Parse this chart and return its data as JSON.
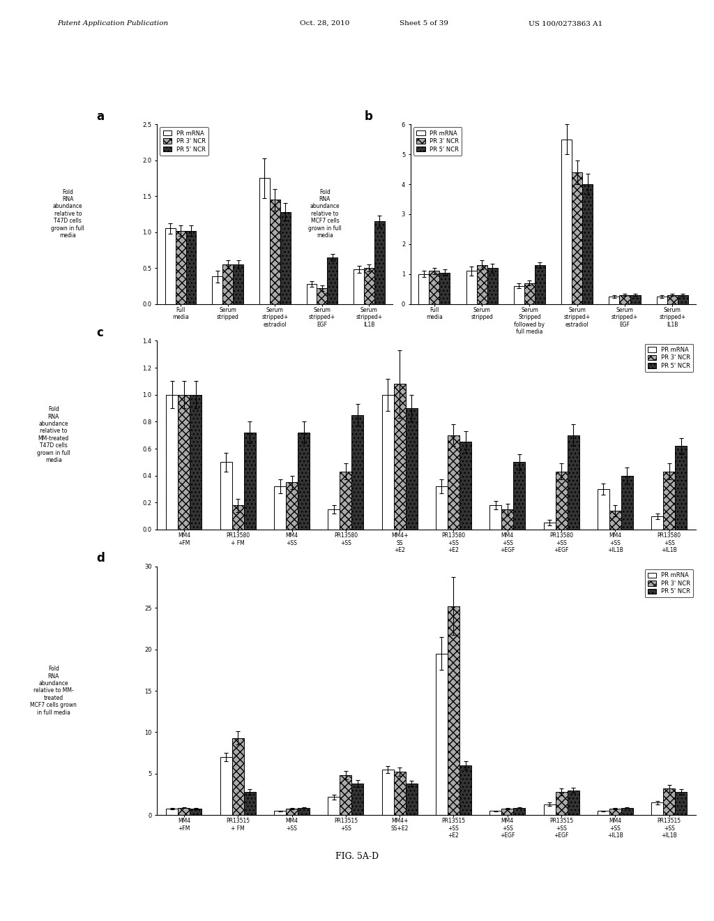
{
  "panel_a": {
    "label": "a",
    "ylabel": "Fold\nRNA\nabundance\nrelative to\nT47D cells\ngrown in full\nmedia",
    "ylim": [
      0,
      2.5
    ],
    "yticks": [
      0,
      0.5,
      1,
      1.5,
      2,
      2.5
    ],
    "groups": [
      "Full\nmedia",
      "Serum\nstripped",
      "Serum\nstripped+\nestradiol",
      "Serum\nstripped+\nEGF",
      "Serum\nstripped+\nIL1B"
    ],
    "PR_mRNA": [
      1.05,
      0.38,
      1.75,
      0.28,
      0.48
    ],
    "PR_3NCR": [
      1.02,
      0.55,
      1.45,
      0.22,
      0.5
    ],
    "PR_5NCR": [
      1.02,
      0.55,
      1.28,
      0.65,
      1.15
    ],
    "PR_mRNA_err": [
      0.07,
      0.08,
      0.28,
      0.04,
      0.05
    ],
    "PR_3NCR_err": [
      0.07,
      0.06,
      0.15,
      0.04,
      0.05
    ],
    "PR_5NCR_err": [
      0.07,
      0.06,
      0.12,
      0.05,
      0.08
    ]
  },
  "panel_b": {
    "label": "b",
    "ylabel": "Fold\nRNA\nabundance\nrelative to\nMCF7 cells\ngrown in full\nmedia",
    "ylim": [
      0,
      6
    ],
    "yticks": [
      0,
      1,
      2,
      3,
      4,
      5,
      6
    ],
    "groups": [
      "Full\nmedia",
      "Serum\nstripped",
      "Serum\nStripped\nfollowed by\nfull media",
      "Serum\nstripped+\nestradiol",
      "Serum\nstripped+\nEGF",
      "Serum\nstripped+\nIL1B"
    ],
    "PR_mRNA": [
      1.0,
      1.1,
      0.6,
      5.5,
      0.25,
      0.25
    ],
    "PR_3NCR": [
      1.1,
      1.3,
      0.7,
      4.4,
      0.3,
      0.3
    ],
    "PR_5NCR": [
      1.05,
      1.2,
      1.3,
      4.0,
      0.3,
      0.3
    ],
    "PR_mRNA_err": [
      0.1,
      0.15,
      0.08,
      0.5,
      0.04,
      0.04
    ],
    "PR_3NCR_err": [
      0.1,
      0.15,
      0.08,
      0.4,
      0.04,
      0.04
    ],
    "PR_5NCR_err": [
      0.1,
      0.15,
      0.1,
      0.35,
      0.04,
      0.04
    ]
  },
  "panel_c": {
    "label": "c",
    "ylabel": "Fold\nRNA\nabundance\nrelative to\nMM-treated\nT47D cells\ngrown in full\nmedia",
    "ylim": [
      0,
      1.4
    ],
    "yticks": [
      0,
      0.2,
      0.4,
      0.6,
      0.8,
      1.0,
      1.2,
      1.4
    ],
    "groups": [
      "MM4\n+FM",
      "PR13580\n+ FM",
      "MM4\n+SS",
      "PR13580\n+SS",
      "MM4+\nSS\n+E2",
      "PR13580\n+SS\n+E2",
      "MM4\n+SS\n+EGF",
      "PR13580\n+SS\n+EGF",
      "MM4\n+SS\n+IL1B",
      "PR13580\n+SS\n+IL1B"
    ],
    "PR_mRNA": [
      1.0,
      0.5,
      0.32,
      0.15,
      1.0,
      0.32,
      0.18,
      0.05,
      0.3,
      0.1
    ],
    "PR_3NCR": [
      1.0,
      0.18,
      0.35,
      0.43,
      1.08,
      0.7,
      0.15,
      0.43,
      0.14,
      0.43
    ],
    "PR_5NCR": [
      1.0,
      0.72,
      0.72,
      0.85,
      0.9,
      0.65,
      0.5,
      0.7,
      0.4,
      0.62
    ],
    "PR_mRNA_err": [
      0.1,
      0.07,
      0.05,
      0.03,
      0.12,
      0.05,
      0.03,
      0.02,
      0.04,
      0.02
    ],
    "PR_3NCR_err": [
      0.1,
      0.05,
      0.05,
      0.06,
      0.25,
      0.08,
      0.04,
      0.06,
      0.04,
      0.06
    ],
    "PR_5NCR_err": [
      0.1,
      0.08,
      0.08,
      0.08,
      0.1,
      0.08,
      0.06,
      0.08,
      0.06,
      0.06
    ]
  },
  "panel_d": {
    "label": "d",
    "ylabel": "Fold\nRNA\nabundance\nrelative to MM-\ntreated\nMCF7 cells grown\nin full media",
    "ylim": [
      0,
      30
    ],
    "yticks": [
      0,
      5,
      10,
      15,
      20,
      25,
      30
    ],
    "groups": [
      "MM4\n+FM",
      "PR13515\n+ FM",
      "MM4\n+SS",
      "PR13515\n+SS",
      "MM4+\nSS+E2",
      "PR13515\n+SS\n+E2",
      "MM4\n+SS\n+EGF",
      "PR13515\n+SS\n+EGF",
      "MM4\n+SS\n+IL1B",
      "PR13515\n+SS\n+IL1B"
    ],
    "PR_mRNA": [
      0.8,
      7.0,
      0.5,
      2.2,
      5.5,
      19.5,
      0.5,
      1.3,
      0.5,
      1.5
    ],
    "PR_3NCR": [
      0.9,
      9.3,
      0.8,
      4.8,
      5.2,
      25.2,
      0.8,
      2.8,
      0.8,
      3.2
    ],
    "PR_5NCR": [
      0.8,
      2.8,
      0.9,
      3.8,
      3.8,
      6.0,
      0.9,
      3.0,
      0.9,
      2.8
    ],
    "PR_mRNA_err": [
      0.08,
      0.5,
      0.05,
      0.3,
      0.4,
      2.0,
      0.05,
      0.2,
      0.05,
      0.2
    ],
    "PR_3NCR_err": [
      0.08,
      0.8,
      0.08,
      0.5,
      0.5,
      3.5,
      0.08,
      0.4,
      0.08,
      0.4
    ],
    "PR_5NCR_err": [
      0.08,
      0.3,
      0.08,
      0.4,
      0.3,
      0.5,
      0.08,
      0.3,
      0.08,
      0.3
    ]
  },
  "colors": {
    "PR_mRNA": "#ffffff",
    "PR_3NCR": "#aaaaaa",
    "PR_5NCR": "#333333"
  },
  "legend_labels": [
    "PR mRNA",
    "PR 3' NCR",
    "PR 5' NCR"
  ],
  "fig_title": "FIG. 5A-D"
}
